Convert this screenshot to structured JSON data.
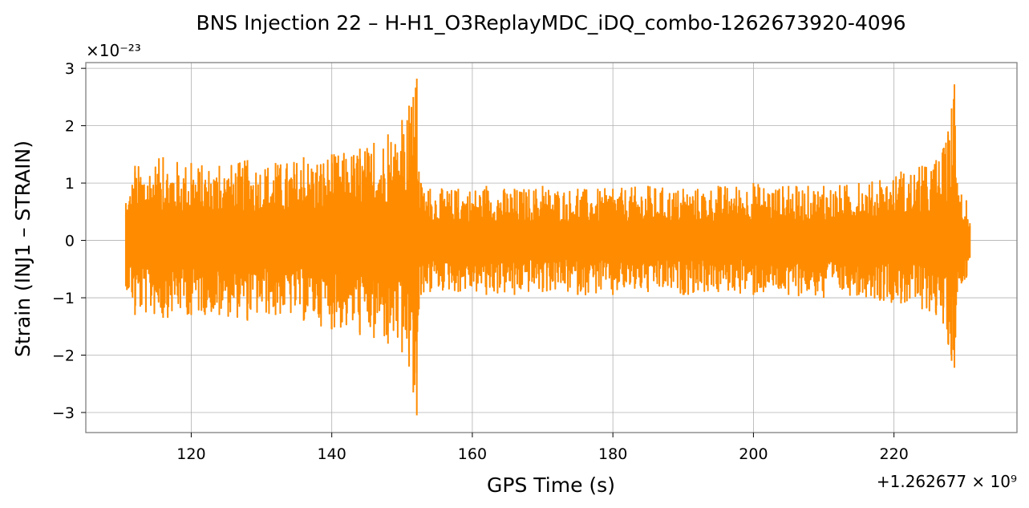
{
  "chart_data": {
    "type": "line",
    "title": "BNS Injection 22 – H-H1_O3ReplayMDC_iDQ_combo-1262673920-4096",
    "xlabel": "GPS Time (s)",
    "ylabel": "Strain (INJ1 – STRAIN)",
    "y_scale_label": "×10⁻²³",
    "x_offset_label": "+1.262677 × 10⁹",
    "xlim": [
      105,
      237.5
    ],
    "ylim": [
      -3.35,
      3.1
    ],
    "x_ticks": [
      120,
      140,
      160,
      180,
      200,
      220
    ],
    "x_tick_labels": [
      "120",
      "140",
      "160",
      "180",
      "200",
      "220"
    ],
    "y_ticks": [
      -3,
      -2,
      -1,
      0,
      1,
      2,
      3
    ],
    "y_tick_labels": [
      "−3",
      "−2",
      "−1",
      "0",
      "1",
      "2",
      "3"
    ],
    "grid": true,
    "series": [
      {
        "color": "#ff8c00",
        "x_start": 110.7,
        "x_end": 230.8,
        "envelope_x": [
          110.7,
          112,
          116,
          120,
          124,
          128,
          132,
          136,
          140,
          144,
          146,
          148,
          150,
          151,
          151.6,
          152.1,
          152.4,
          152.7,
          154,
          158,
          162,
          166,
          170,
          175,
          180,
          185,
          190,
          195,
          200,
          205,
          210,
          215,
          218,
          221,
          224,
          226,
          227,
          227.7,
          228.2,
          228.6,
          229.0,
          229.6,
          230.3,
          230.8
        ],
        "envelope_max": [
          0.65,
          1.3,
          1.45,
          1.35,
          1.3,
          1.4,
          1.35,
          1.45,
          1.5,
          1.6,
          1.7,
          1.85,
          2.1,
          2.35,
          2.5,
          2.82,
          1.2,
          1.0,
          0.9,
          0.9,
          0.95,
          0.9,
          0.95,
          0.9,
          0.9,
          0.95,
          0.9,
          0.95,
          1.0,
          0.95,
          0.95,
          1.0,
          1.05,
          1.2,
          1.3,
          1.4,
          1.6,
          1.9,
          2.3,
          2.72,
          1.0,
          0.8,
          0.7,
          0.3
        ],
        "envelope_min": [
          -0.8,
          -1.3,
          -1.35,
          -1.3,
          -1.3,
          -1.4,
          -1.3,
          -1.4,
          -1.55,
          -1.65,
          -1.7,
          -1.8,
          -1.95,
          -2.2,
          -2.65,
          -3.05,
          -1.2,
          -0.95,
          -0.9,
          -0.9,
          -0.95,
          -0.95,
          -0.9,
          -0.95,
          -0.95,
          -0.9,
          -0.95,
          -0.9,
          -0.95,
          -0.95,
          -1.0,
          -0.95,
          -1.05,
          -1.1,
          -1.2,
          -1.3,
          -1.45,
          -1.8,
          -2.1,
          -2.22,
          -0.9,
          -0.75,
          -0.65,
          -0.3
        ],
        "samples": 2400
      }
    ]
  }
}
